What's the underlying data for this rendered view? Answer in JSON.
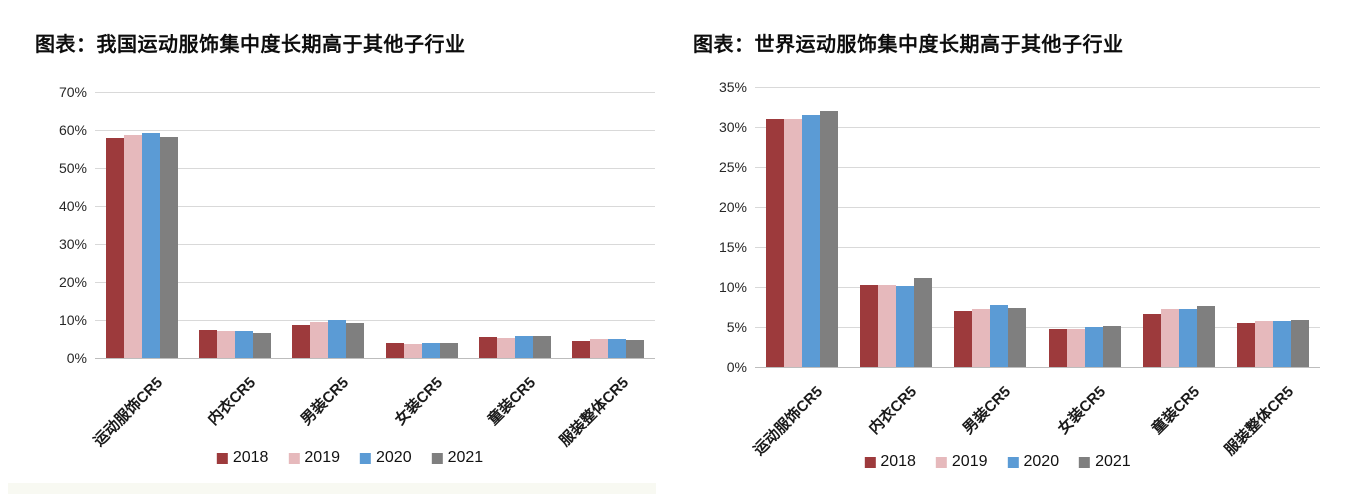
{
  "chart_data": [
    {
      "type": "bar",
      "title": "图表：我国运动服饰集中度长期高于其他子行业",
      "categories": [
        "运动服饰CR5",
        "内衣CR5",
        "男装CR5",
        "女装CR5",
        "童装CR5",
        "服装整体CR5"
      ],
      "series": [
        {
          "name": "2018",
          "color": "#9d3a3c",
          "values": [
            58.0,
            7.3,
            8.7,
            3.9,
            5.4,
            4.6
          ]
        },
        {
          "name": "2019",
          "color": "#e6b9bc",
          "values": [
            58.8,
            7.0,
            9.4,
            3.8,
            5.3,
            4.9
          ]
        },
        {
          "name": "2020",
          "color": "#5b9bd5",
          "values": [
            59.2,
            7.2,
            10.0,
            4.0,
            5.9,
            5.1
          ]
        },
        {
          "name": "2021",
          "color": "#7f7f7f",
          "values": [
            58.2,
            6.7,
            9.3,
            4.0,
            5.7,
            4.8
          ]
        }
      ],
      "ylim": [
        0,
        70
      ],
      "ytick_step": 10,
      "ytick_labels": [
        "0%",
        "10%",
        "20%",
        "30%",
        "40%",
        "50%",
        "60%",
        "70%"
      ],
      "xlabel": "",
      "ylabel": "",
      "grid": true,
      "legend_position": "bottom"
    },
    {
      "type": "bar",
      "title": "图表：世界运动服饰集中度长期高于其他子行业",
      "categories": [
        "运动服饰CR5",
        "内衣CR5",
        "男装CR5",
        "女装CR5",
        "童装CR5",
        "服装整体CR5"
      ],
      "series": [
        {
          "name": "2018",
          "color": "#9d3a3c",
          "values": [
            31.0,
            10.3,
            7.0,
            4.8,
            6.6,
            5.5
          ]
        },
        {
          "name": "2019",
          "color": "#e6b9bc",
          "values": [
            31.0,
            10.3,
            7.2,
            4.7,
            7.2,
            5.7
          ]
        },
        {
          "name": "2020",
          "color": "#5b9bd5",
          "values": [
            31.5,
            10.1,
            7.8,
            5.0,
            7.2,
            5.7
          ]
        },
        {
          "name": "2021",
          "color": "#7f7f7f",
          "values": [
            32.0,
            11.1,
            7.4,
            5.1,
            7.6,
            5.9
          ]
        }
      ],
      "ylim": [
        0,
        35
      ],
      "ytick_step": 5,
      "ytick_labels": [
        "0%",
        "5%",
        "10%",
        "15%",
        "20%",
        "25%",
        "30%",
        "35%"
      ],
      "xlabel": "",
      "ylabel": "",
      "grid": true,
      "legend_position": "bottom"
    }
  ]
}
